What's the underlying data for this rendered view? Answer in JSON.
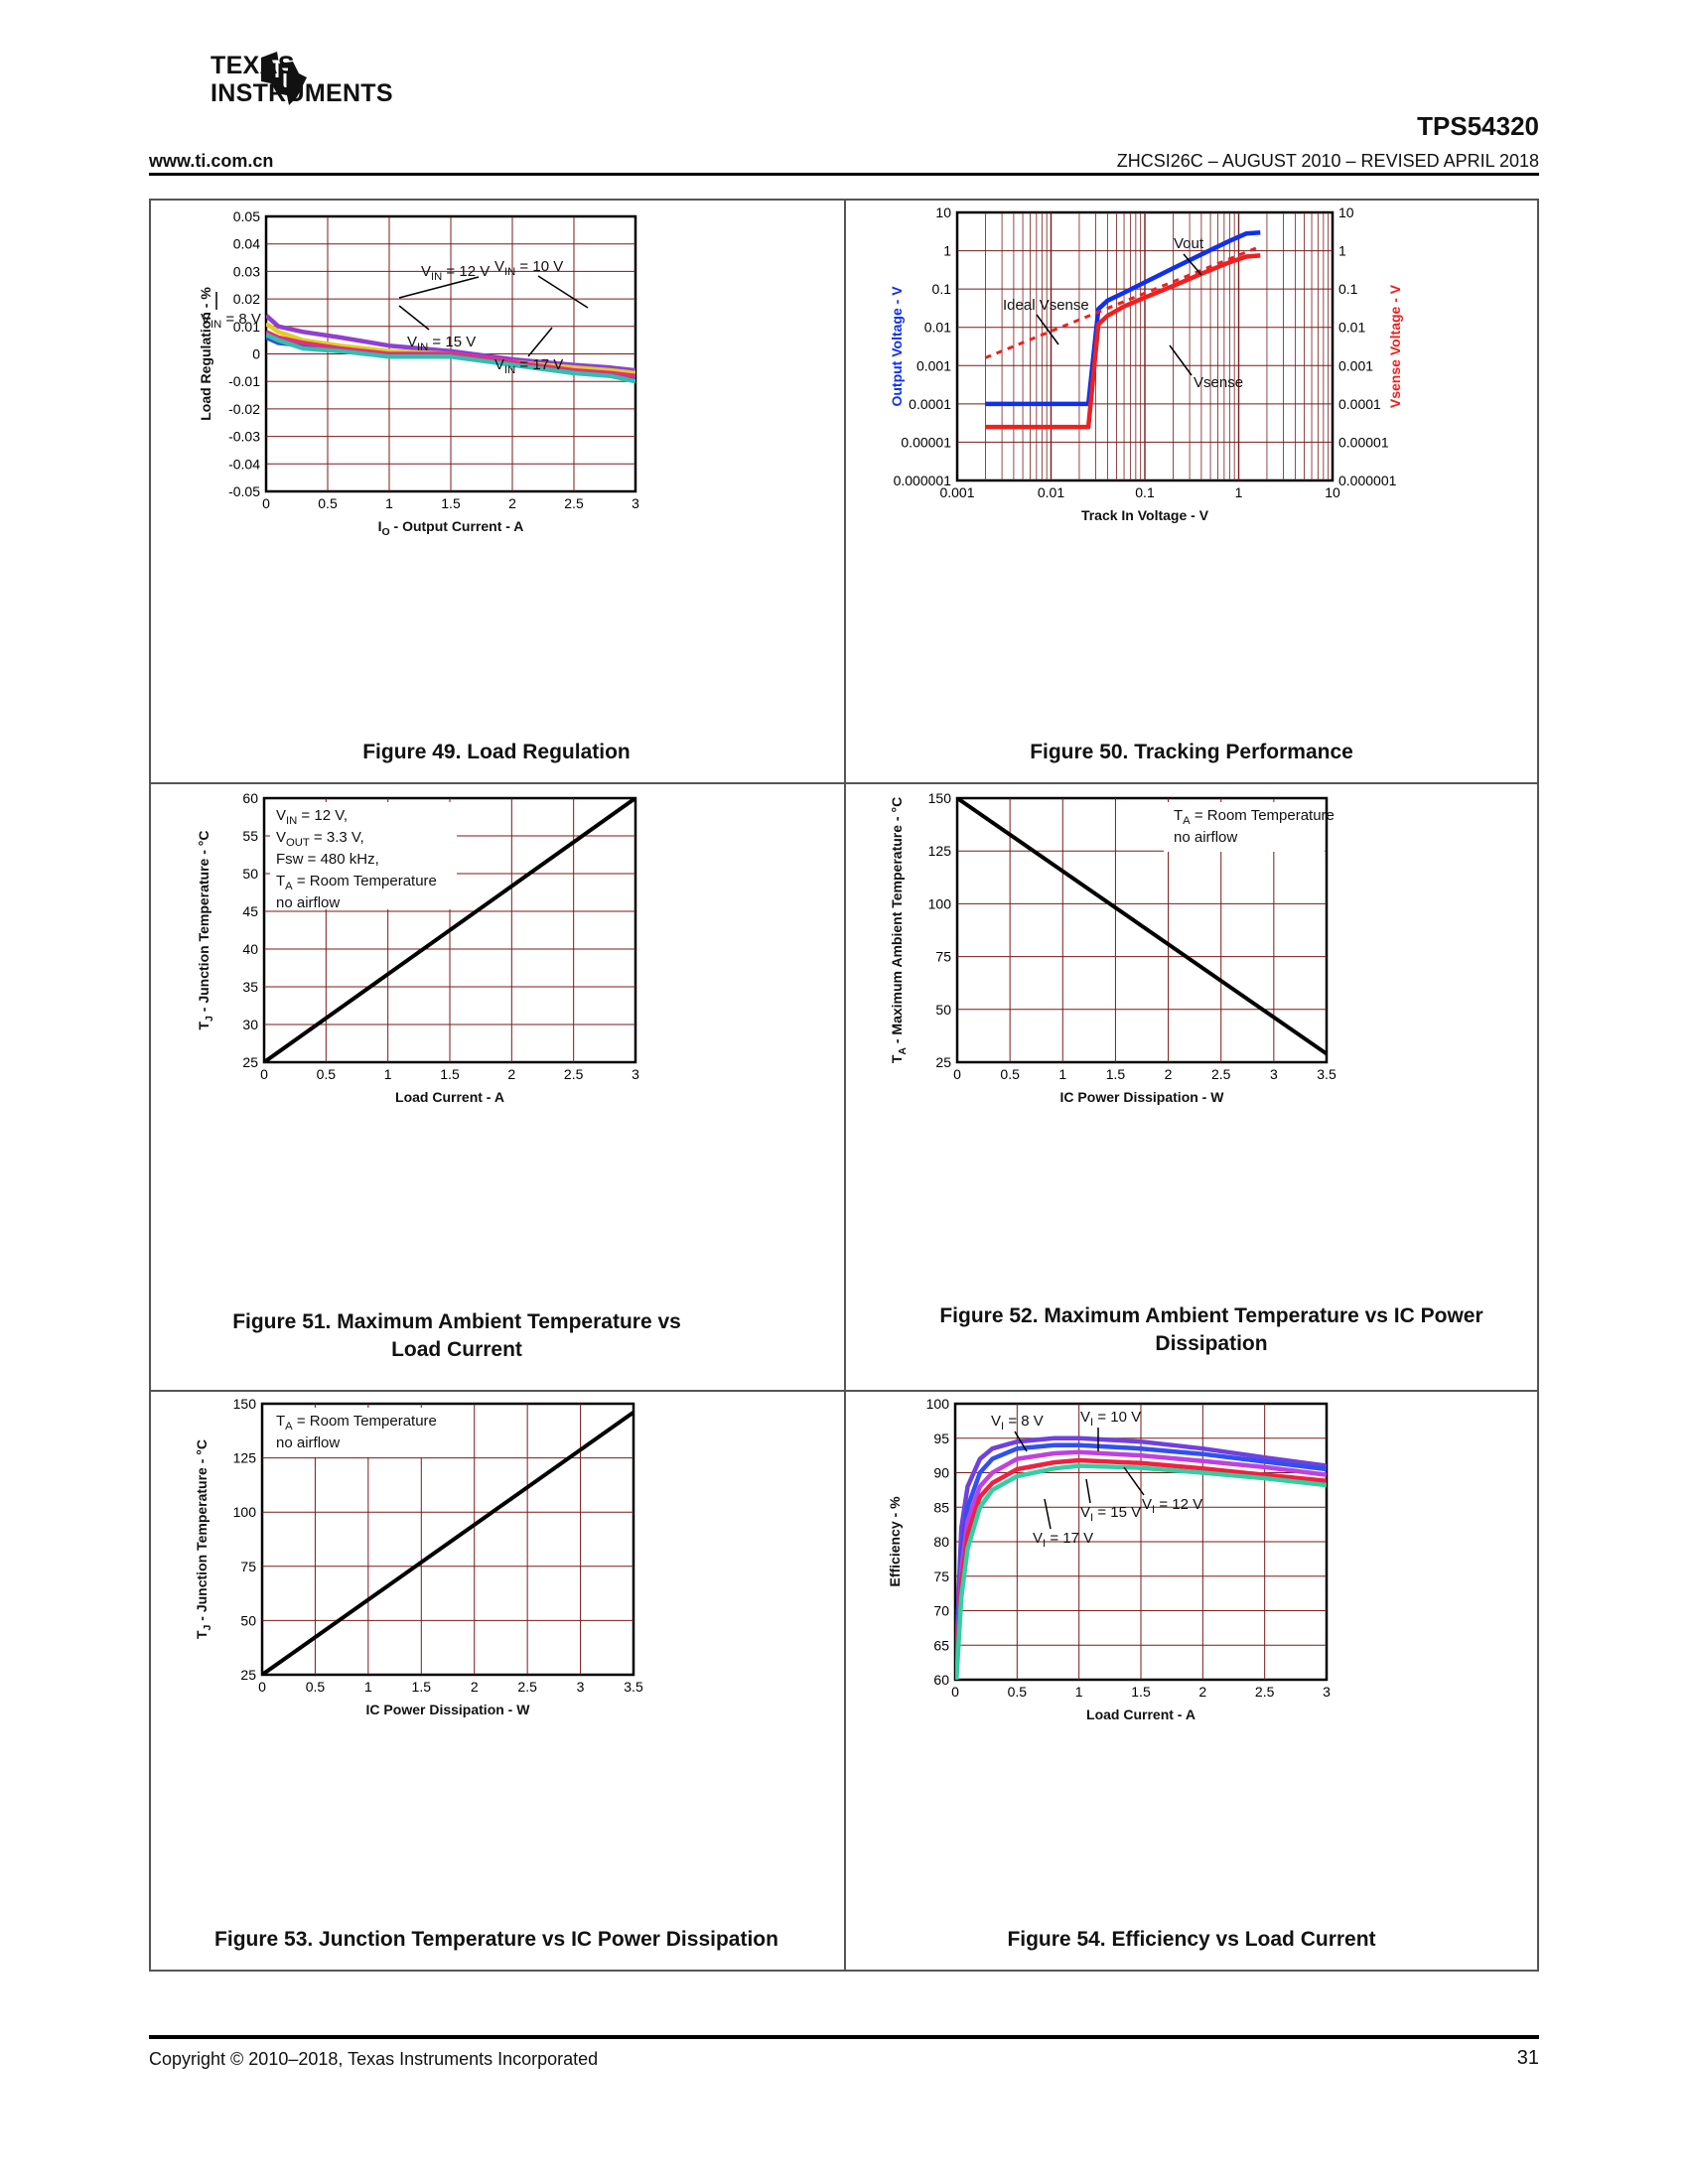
{
  "header": {
    "company": "Texas Instruments",
    "company_line1": "TEXAS",
    "company_line2": "INSTRUMENTS",
    "part_number": "TPS54320",
    "site_url": "www.ti.com.cn",
    "doc_id": "ZHCSI26C – AUGUST 2010 – REVISED APRIL 2018",
    "logo_icon": "ti-logo-icon"
  },
  "footer": {
    "copyright": "Copyright © 2010–2018, Texas Instruments Incorporated",
    "page_number": "31"
  },
  "chart_data": [
    {
      "id": "fig49",
      "type": "line",
      "caption": "Figure 49. Load Regulation",
      "xlabel": "IO - Output Current - A",
      "ylabel": "Load Regulation - %",
      "xlim": [
        0,
        3
      ],
      "ylim": [
        -0.05,
        0.05
      ],
      "xticks": [
        "0",
        "0.5",
        "1",
        "1.5",
        "2",
        "2.5",
        "3"
      ],
      "yticks": [
        "0.05",
        "0.04",
        "0.03",
        "0.02",
        "0.01",
        "0",
        "-0.01",
        "-0.02",
        "-0.03",
        "-0.04",
        "-0.05"
      ],
      "series": [
        {
          "name": "VIN = 8 V",
          "color": "#3050d0",
          "x": [
            0,
            0.1,
            0.3,
            0.6,
            1.0,
            1.5,
            2.0,
            2.5,
            2.8,
            3.0
          ],
          "y": [
            0.006,
            0.004,
            0.003,
            0.002,
            0.0,
            0.001,
            -0.004,
            -0.006,
            -0.007,
            -0.009
          ]
        },
        {
          "name": "VIN = 10 V",
          "color": "#9040d0",
          "x": [
            0,
            0.1,
            0.3,
            0.6,
            1.0,
            1.5,
            2.0,
            2.5,
            2.8,
            3.0
          ],
          "y": [
            0.014,
            0.01,
            0.008,
            0.006,
            0.003,
            0.001,
            -0.002,
            -0.004,
            -0.005,
            -0.006
          ]
        },
        {
          "name": "VIN = 12 V",
          "color": "#e0d020",
          "x": [
            0,
            0.1,
            0.3,
            0.6,
            1.0,
            1.5,
            2.0,
            2.5,
            2.8,
            3.0
          ],
          "y": [
            0.011,
            0.008,
            0.005,
            0.003,
            0.001,
            0.0,
            -0.003,
            -0.005,
            -0.006,
            -0.007
          ]
        },
        {
          "name": "VIN = 15 V",
          "color": "#e03080",
          "x": [
            0,
            0.1,
            0.3,
            0.6,
            1.0,
            1.5,
            2.0,
            2.5,
            2.8,
            3.0
          ],
          "y": [
            0.008,
            0.006,
            0.004,
            0.002,
            0.0,
            0.0,
            -0.003,
            -0.006,
            -0.007,
            -0.008
          ]
        },
        {
          "name": "VIN = 17 V",
          "color": "#30c0b0",
          "x": [
            0,
            0.1,
            0.3,
            0.6,
            1.0,
            1.5,
            2.0,
            2.5,
            2.8,
            3.0
          ],
          "y": [
            0.007,
            0.005,
            0.002,
            0.001,
            -0.001,
            -0.001,
            -0.004,
            -0.007,
            -0.008,
            -0.01
          ]
        }
      ],
      "annotations": [
        "VIN = 12 V",
        "VIN = 10 V",
        "VIN = 8 V",
        "VIN = 15 V",
        "VIN = 17 V"
      ]
    },
    {
      "id": "fig50",
      "type": "line",
      "caption": "Figure 50. Tracking Performance",
      "xlabel": "Track In Voltage - V",
      "ylabel": "Output Voltage - V",
      "y2label": "Vsense Voltage - V",
      "xscale": "log",
      "yscale": "log",
      "xlim": [
        0.001,
        10
      ],
      "ylim": [
        1e-06,
        10
      ],
      "xticks": [
        "0.001",
        "0.01",
        "0.1",
        "1",
        "10"
      ],
      "yticks": [
        "10",
        "1",
        "0.1",
        "0.01",
        "0.001",
        "0.0001",
        "0.00001",
        "0.000001"
      ],
      "series": [
        {
          "name": "Vout",
          "color": "#1030ee",
          "x": [
            0.002,
            0.025,
            0.032,
            0.04,
            0.06,
            0.1,
            0.2,
            0.4,
            0.8,
            1.2,
            1.7
          ],
          "y": [
            0.0001,
            0.0001,
            0.03,
            0.05,
            0.08,
            0.15,
            0.35,
            0.8,
            1.8,
            2.8,
            3.0
          ]
        },
        {
          "name": "Vsense",
          "color": "#ee2020",
          "x": [
            0.002,
            0.025,
            0.032,
            0.04,
            0.06,
            0.1,
            0.2,
            0.4,
            0.8,
            1.2,
            1.7
          ],
          "y": [
            2.5e-05,
            2.5e-05,
            0.012,
            0.02,
            0.035,
            0.06,
            0.12,
            0.25,
            0.5,
            0.7,
            0.75
          ]
        },
        {
          "name": "Ideal Vsense",
          "color": "#ee2020",
          "dashed": true,
          "x": [
            0.002,
            1.7
          ],
          "y": [
            0.0016,
            1.3
          ]
        }
      ],
      "annotations": [
        "Vout",
        "Ideal Vsense",
        "Vsense"
      ]
    },
    {
      "id": "fig51",
      "type": "line",
      "caption": "Figure 51. Maximum Ambient Temperature vs Load Current",
      "xlabel": "Load Current - A",
      "ylabel": "TJ - Junction Temperature - °C",
      "xlim": [
        0,
        3
      ],
      "ylim": [
        25,
        60
      ],
      "xticks": [
        "0",
        "0.5",
        "1",
        "1.5",
        "2",
        "2.5",
        "3"
      ],
      "yticks": [
        "60",
        "55",
        "50",
        "45",
        "40",
        "35",
        "30",
        "25"
      ],
      "series": [
        {
          "name": "TJ",
          "color": "#000000",
          "x": [
            0,
            3
          ],
          "y": [
            25,
            60
          ]
        }
      ],
      "notes": [
        "VIN = 12 V,",
        "VOUT = 3.3 V,",
        "Fsw = 480 kHz,",
        "TA = Room Temperature",
        "no airflow"
      ]
    },
    {
      "id": "fig52",
      "type": "line",
      "caption": "Figure 52. Maximum Ambient Temperature vs IC Power Dissipation",
      "xlabel": "IC Power Dissipation - W",
      "ylabel": "TA - Maximum Ambient Temperature - °C",
      "xlim": [
        0,
        3.5
      ],
      "ylim": [
        25,
        150
      ],
      "xticks": [
        "0",
        "0.5",
        "1",
        "1.5",
        "2",
        "2.5",
        "3",
        "3.5"
      ],
      "yticks": [
        "150",
        "125",
        "100",
        "75",
        "50",
        "25"
      ],
      "series": [
        {
          "name": "TA",
          "color": "#000000",
          "x": [
            0,
            3.5
          ],
          "y": [
            150,
            29
          ]
        }
      ],
      "notes": [
        "TA = Room Temperature",
        "no airflow"
      ]
    },
    {
      "id": "fig53",
      "type": "line",
      "caption": "Figure 53. Junction Temperature vs IC Power Dissipation",
      "xlabel": "IC Power Dissipation - W",
      "ylabel": "TJ - Junction Temperature - °C",
      "xlim": [
        0,
        3.5
      ],
      "ylim": [
        25,
        150
      ],
      "xticks": [
        "0",
        "0.5",
        "1",
        "1.5",
        "2",
        "2.5",
        "3",
        "3.5"
      ],
      "yticks": [
        "150",
        "125",
        "100",
        "75",
        "50",
        "25"
      ],
      "series": [
        {
          "name": "TJ",
          "color": "#000000",
          "x": [
            0,
            3.5
          ],
          "y": [
            25,
            146
          ]
        }
      ],
      "notes": [
        "TA = Room Temperature",
        "no airflow"
      ]
    },
    {
      "id": "fig54",
      "type": "line",
      "caption": "Figure 54. Efficiency vs Load Current",
      "xlabel": "Load Current - A",
      "ylabel": "Efficiency - %",
      "xlim": [
        0,
        3
      ],
      "ylim": [
        60,
        100
      ],
      "xticks": [
        "0",
        "0.5",
        "1",
        "1.5",
        "2",
        "2.5",
        "3"
      ],
      "yticks": [
        "100",
        "95",
        "90",
        "85",
        "80",
        "75",
        "70",
        "65",
        "60"
      ],
      "series": [
        {
          "name": "VI = 8 V",
          "color": "#7040e0",
          "x": [
            0.01,
            0.05,
            0.1,
            0.2,
            0.3,
            0.5,
            0.8,
            1.0,
            1.5,
            2.0,
            2.5,
            3.0
          ],
          "y": [
            64,
            82,
            88,
            92,
            93.5,
            94.5,
            95,
            95,
            94.5,
            93.5,
            92.2,
            91
          ]
        },
        {
          "name": "VI = 10 V",
          "color": "#3050f0",
          "x": [
            0.01,
            0.05,
            0.1,
            0.2,
            0.3,
            0.5,
            0.8,
            1.0,
            1.5,
            2.0,
            2.5,
            3.0
          ],
          "y": [
            62,
            78,
            85,
            90,
            92,
            93.5,
            94,
            94,
            93.5,
            92.7,
            91.6,
            90.5
          ]
        },
        {
          "name": "VI = 12 V",
          "color": "#c040e0",
          "x": [
            0.01,
            0.05,
            0.1,
            0.2,
            0.3,
            0.5,
            0.8,
            1.0,
            1.5,
            2.0,
            2.5,
            3.0
          ],
          "y": [
            61,
            76,
            83,
            88,
            90,
            92,
            92.8,
            93,
            92.5,
            91.7,
            90.8,
            89.7
          ]
        },
        {
          "name": "VI = 15 V",
          "color": "#f02040",
          "x": [
            0.01,
            0.05,
            0.1,
            0.2,
            0.3,
            0.5,
            0.8,
            1.0,
            1.5,
            2.0,
            2.5,
            3.0
          ],
          "y": [
            60.5,
            74,
            81,
            86.5,
            88.5,
            90.5,
            91.5,
            91.8,
            91.4,
            90.6,
            89.7,
            88.8
          ]
        },
        {
          "name": "VI = 17 V",
          "color": "#30d0a0",
          "x": [
            0.01,
            0.05,
            0.1,
            0.2,
            0.3,
            0.5,
            0.8,
            1.0,
            1.5,
            2.0,
            2.5,
            3.0
          ],
          "y": [
            60,
            72,
            79,
            85,
            87.5,
            89.5,
            90.6,
            91,
            90.7,
            90,
            89.2,
            88.2
          ]
        }
      ],
      "annotations": [
        "VI = 8 V",
        "VI = 10 V",
        "VI = 12 V",
        "VI = 15 V",
        "VI = 17 V"
      ]
    }
  ]
}
